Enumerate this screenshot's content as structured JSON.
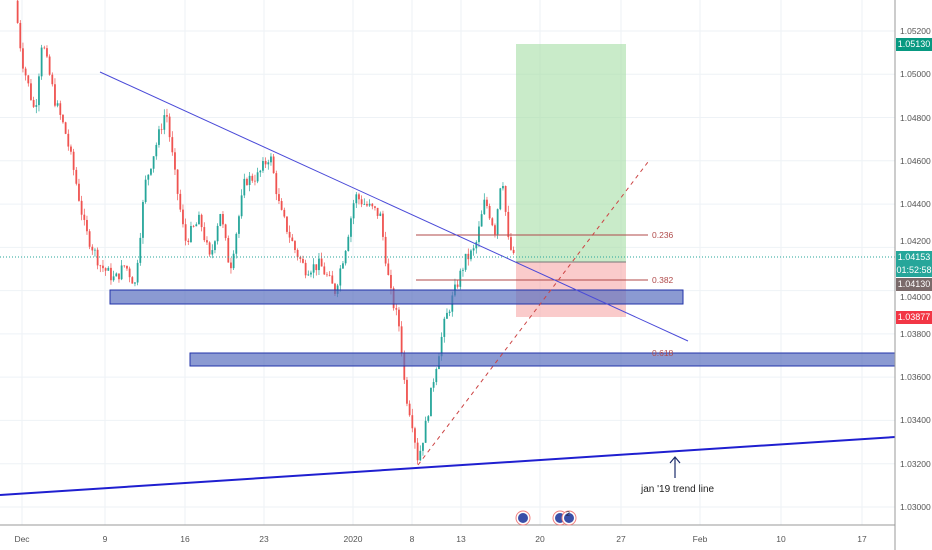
{
  "symbol_chart": {
    "price_axis": [
      "1.05200",
      "1.05000",
      "1.04800",
      "1.04600",
      "1.04400",
      "1.04200",
      "1.04000",
      "1.03800",
      "1.03600",
      "1.03400",
      "1.03200",
      "1.03000"
    ],
    "time_axis": [
      "Dec",
      "9",
      "16",
      "23",
      "2020",
      "8",
      "13",
      "20",
      "27",
      "Feb",
      "10",
      "17"
    ],
    "labels": {
      "target": "1.05130",
      "current": "1.04153",
      "countdown": "01:52:58",
      "crosshair": "1.04130",
      "stop": "1.03877"
    },
    "fib_levels": [
      "0.236",
      "0.382",
      "0.618"
    ],
    "annotation": "jan '19 trend line",
    "event_badge_count": "2",
    "colors": {
      "up": "#26a69a",
      "down": "#ef5350",
      "zone": "#5a6fbf",
      "trend": "#2b2bd6",
      "target_bg": "#089981",
      "stop_bg": "#f23645",
      "current_bg": "#26a69a",
      "crosshair_bg": "#7a6a6a"
    },
    "price_path": [
      [
        -0.44,
        1.0534
      ],
      [
        0,
        1.0507
      ],
      [
        0.81,
        1.0482
      ],
      [
        1.25,
        1.0516
      ],
      [
        2.06,
        1.0488
      ],
      [
        2.69,
        1.0474
      ],
      [
        3.31,
        1.0453
      ],
      [
        3.94,
        1.0428
      ],
      [
        4.88,
        1.0412
      ],
      [
        5.81,
        1.0405
      ],
      [
        6.44,
        1.0412
      ],
      [
        7.06,
        1.0403
      ],
      [
        7.69,
        1.0449
      ],
      [
        8.63,
        1.0474
      ],
      [
        9,
        1.0484
      ],
      [
        9.56,
        1.0453
      ],
      [
        10.19,
        1.0423
      ],
      [
        11.13,
        1.0433
      ],
      [
        11.75,
        1.0414
      ],
      [
        12.38,
        1.0437
      ],
      [
        13,
        1.041
      ],
      [
        13.94,
        1.0451
      ],
      [
        14.75,
        1.0453
      ],
      [
        15.5,
        1.0463
      ],
      [
        16.13,
        1.0437
      ],
      [
        17.06,
        1.0419
      ],
      [
        17.69,
        1.041
      ],
      [
        18.63,
        1.0412
      ],
      [
        19.56,
        1.04
      ],
      [
        20.19,
        1.0419
      ],
      [
        20.81,
        1.0444
      ],
      [
        21.44,
        1.044
      ],
      [
        22.38,
        1.0435
      ],
      [
        23,
        1.04
      ],
      [
        23.63,
        1.0382
      ],
      [
        23.94,
        1.0354
      ],
      [
        24.38,
        1.034
      ],
      [
        24.75,
        1.0322
      ],
      [
        25.19,
        1.0336
      ],
      [
        25.81,
        1.0363
      ],
      [
        26.44,
        1.0386
      ],
      [
        27.06,
        1.04
      ],
      [
        27.69,
        1.0414
      ],
      [
        28.31,
        1.0419
      ],
      [
        28.94,
        1.0442
      ],
      [
        29.56,
        1.0428
      ],
      [
        30,
        1.0456
      ],
      [
        30.38,
        1.0423
      ],
      [
        30.81,
        1.0413
      ]
    ]
  }
}
